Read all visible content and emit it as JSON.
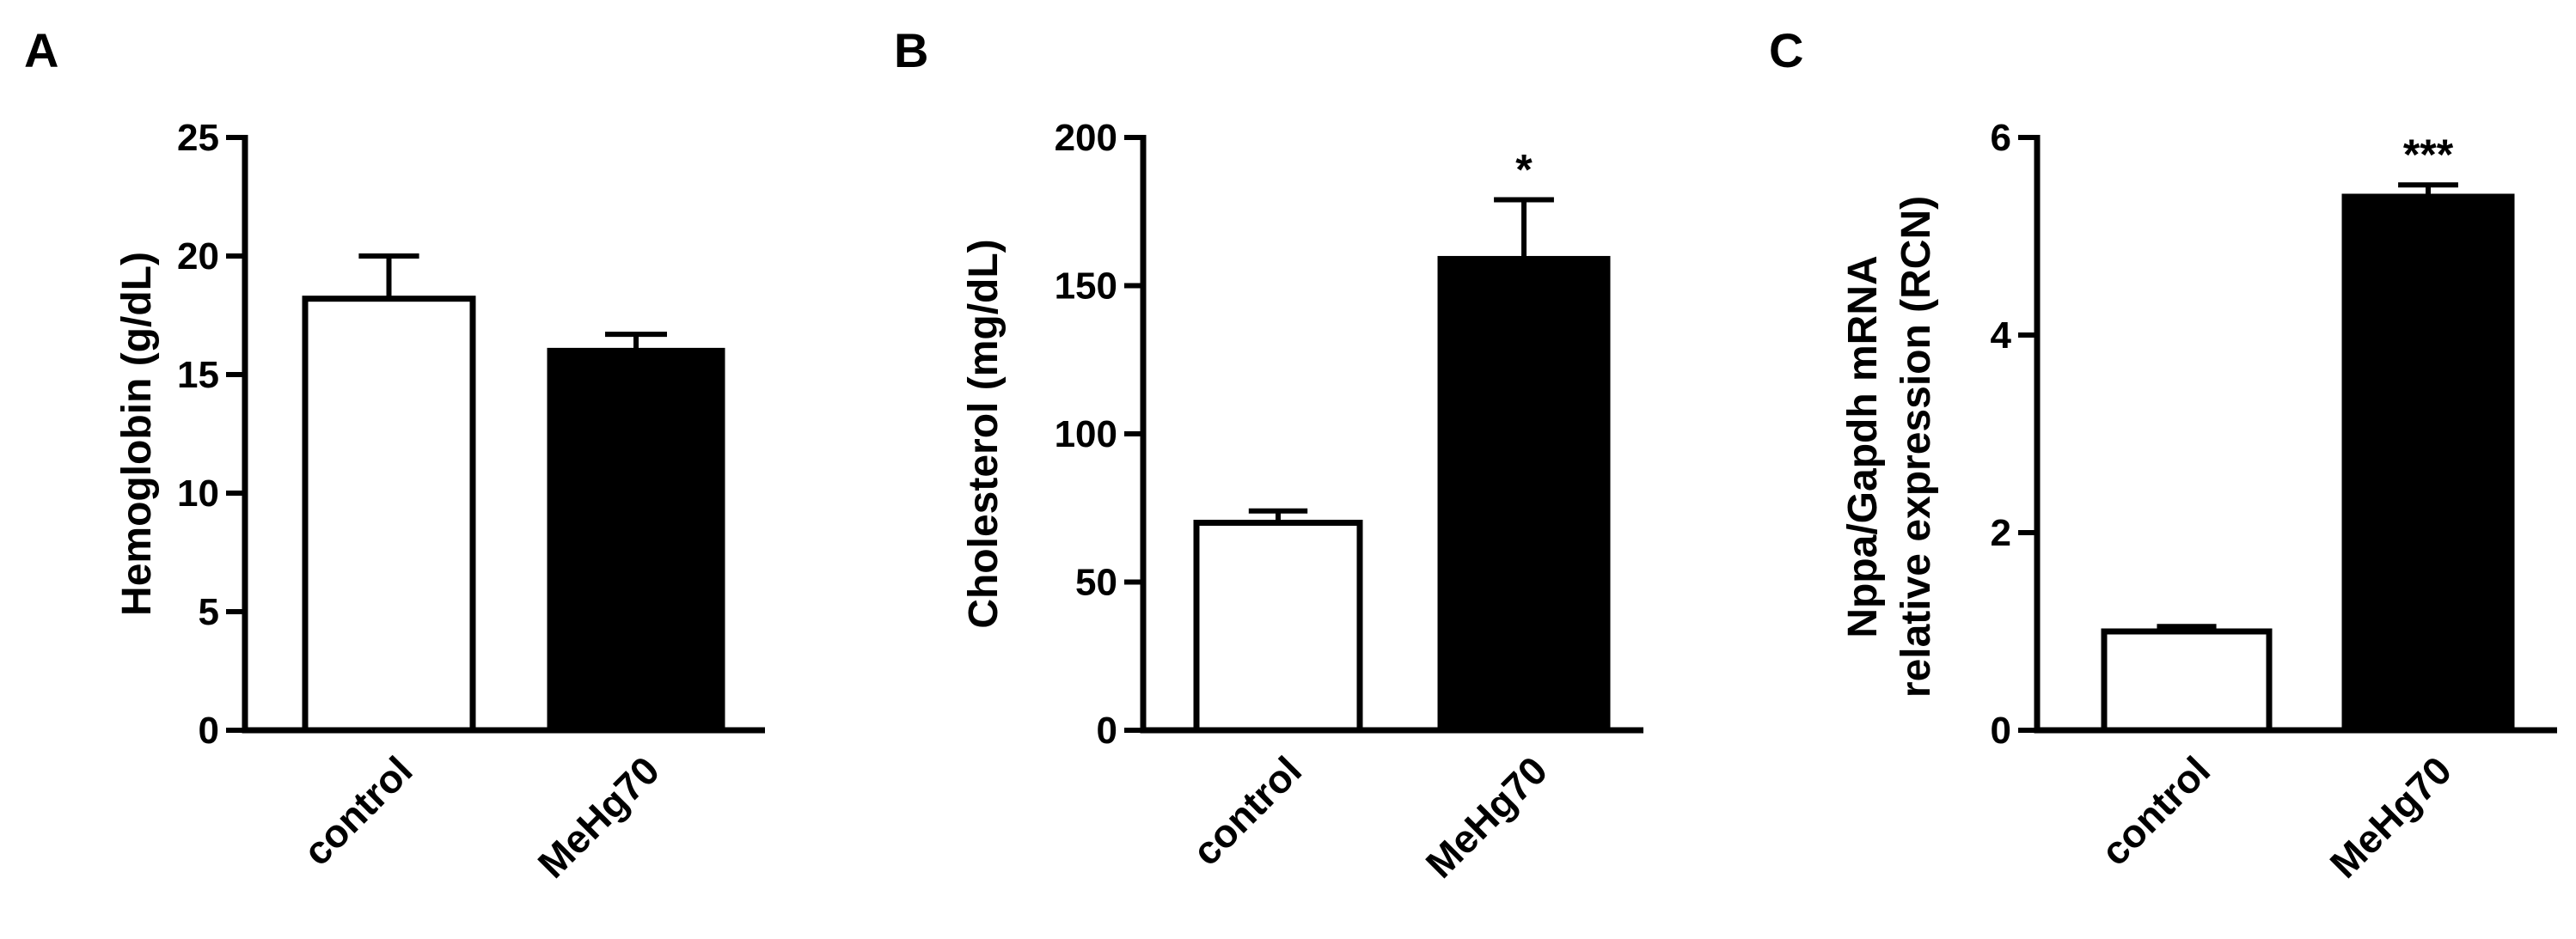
{
  "colors": {
    "control": "#ffffff",
    "MeHg70": "#000000",
    "axis": "#000000"
  },
  "chart_data": [
    {
      "panel": "A",
      "type": "bar",
      "categories": [
        "control",
        "MeHg70"
      ],
      "values": [
        18.2,
        16.0
      ],
      "errors": [
        1.8,
        0.7
      ],
      "annotations": [
        "",
        ""
      ],
      "ylabel": "Hemoglobin (g/dL)",
      "ylim": [
        0,
        25
      ],
      "yticks": [
        0,
        5,
        10,
        15,
        20,
        25
      ],
      "ytick_labels": [
        "0",
        "5",
        "10",
        "15",
        "20",
        "25"
      ],
      "grid": false
    },
    {
      "panel": "B",
      "type": "bar",
      "categories": [
        "control",
        "MeHg70"
      ],
      "values": [
        70,
        159
      ],
      "errors": [
        4,
        20
      ],
      "annotations": [
        "",
        "*"
      ],
      "ylabel": "Cholesterol (mg/dL)",
      "ylim": [
        0,
        200
      ],
      "yticks": [
        0,
        50,
        100,
        150,
        200
      ],
      "ytick_labels": [
        "0",
        "50",
        "100",
        "150",
        "200"
      ],
      "grid": false
    },
    {
      "panel": "C",
      "type": "bar",
      "categories": [
        "control",
        "MeHg70"
      ],
      "values": [
        1.0,
        5.4
      ],
      "errors": [
        0.05,
        0.12
      ],
      "annotations": [
        "",
        "***"
      ],
      "ylabel": [
        "Nppa/Gapdh mRNA",
        "relative expression (RCN)"
      ],
      "ylim": [
        0,
        6
      ],
      "yticks": [
        0,
        2,
        4,
        6
      ],
      "ytick_labels": [
        "0",
        "2",
        "4",
        "6"
      ],
      "grid": false
    }
  ]
}
